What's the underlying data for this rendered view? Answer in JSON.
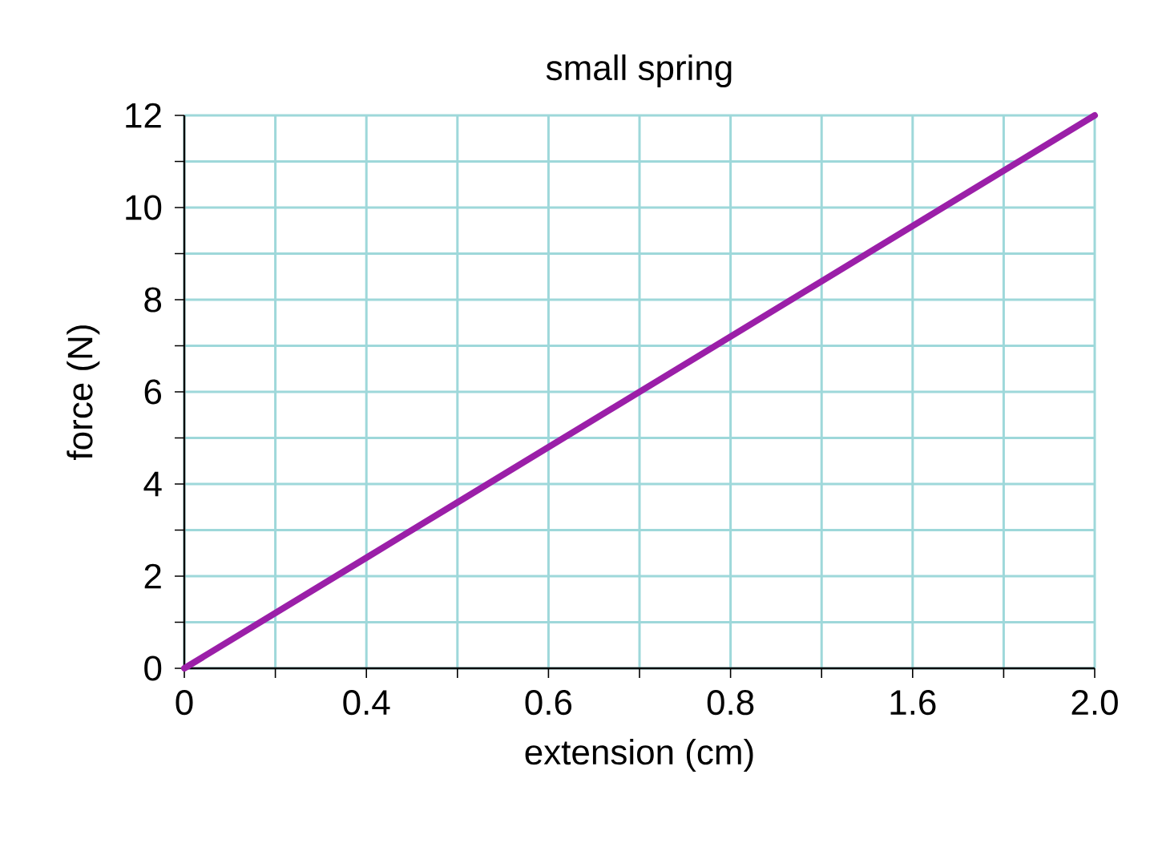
{
  "chart_data": {
    "type": "line",
    "title": "small spring",
    "xlabel": "extension (cm)",
    "ylabel": "force (N)",
    "categories": [
      "0",
      null,
      "0.4",
      null,
      "0.6",
      null,
      "0.8",
      null,
      "1.6",
      null,
      "2.0"
    ],
    "series": [
      {
        "color": "#9b1fa8",
        "values": [
          0,
          1.2,
          2.4,
          3.6,
          4.8,
          6,
          7.2,
          8.4,
          9.6,
          10.8,
          12
        ]
      }
    ],
    "ylim": [
      0,
      12
    ],
    "yticks": [
      0,
      {
        "value": 1,
        "label": null
      },
      2,
      {
        "value": 3,
        "label": null
      },
      4,
      {
        "value": 5,
        "label": null
      },
      6,
      {
        "value": 7,
        "label": null
      },
      8,
      {
        "value": 9,
        "label": null
      },
      10,
      {
        "value": 11,
        "label": null
      },
      12
    ],
    "grid": true,
    "marker": "none",
    "line_style": "solid"
  }
}
